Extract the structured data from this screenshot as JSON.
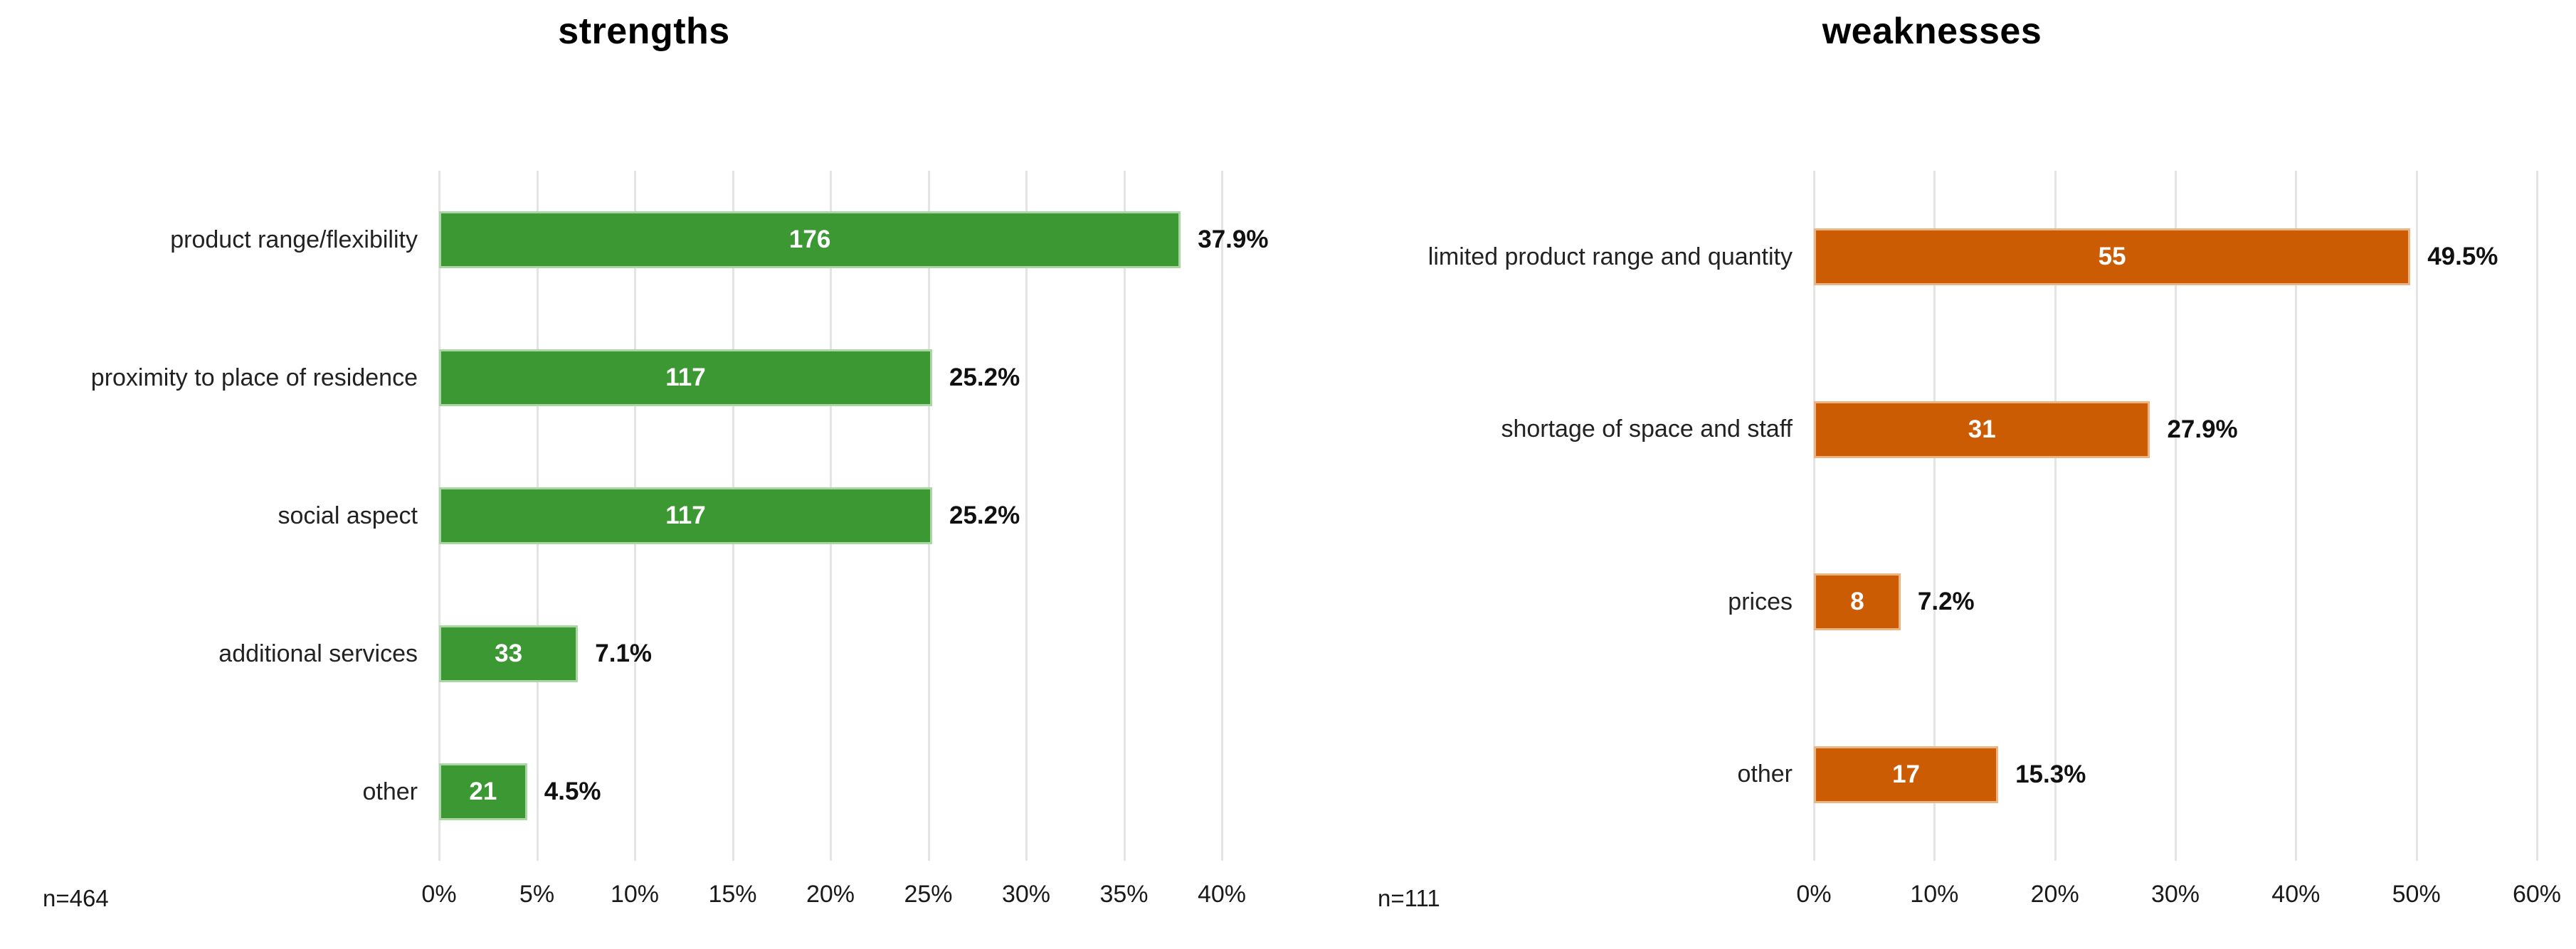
{
  "chart_data": [
    {
      "type": "bar",
      "orientation": "horizontal",
      "title": "strengths",
      "n_label": "n=464",
      "axis_max": 40,
      "tick_step": 5,
      "grid": true,
      "bar_color": "#3b9833",
      "bar_edge_color": "#a9d6a3",
      "categories": [
        "product range/flexibility",
        "proximity to place of residence",
        "social aspect",
        "additional services",
        "other"
      ],
      "counts": [
        "176",
        "117",
        "117",
        "33",
        "21"
      ],
      "percents": [
        37.9,
        25.2,
        25.2,
        7.1,
        4.5
      ],
      "percent_labels": [
        "37.9%",
        "25.2%",
        "25.2%",
        "7.1%",
        "4.5%"
      ],
      "tick_labels": [
        "0%",
        "5%",
        "10%",
        "15%",
        "20%",
        "25%",
        "30%",
        "35%",
        "40%"
      ]
    },
    {
      "type": "bar",
      "orientation": "horizontal",
      "title": "weaknesses",
      "n_label": "n=111",
      "axis_max": 60,
      "tick_step": 10,
      "grid": true,
      "bar_color": "#cc5c04",
      "bar_edge_color": "#ecb483",
      "categories": [
        "limited product range and quantity",
        "shortage of space and staff",
        "prices",
        "other"
      ],
      "counts": [
        "55",
        "31",
        "8",
        "17"
      ],
      "percents": [
        49.5,
        27.9,
        7.2,
        15.3
      ],
      "percent_labels": [
        "49.5%",
        "27.9%",
        "7.2%",
        "15.3%"
      ],
      "tick_labels": [
        "0%",
        "10%",
        "20%",
        "30%",
        "40%",
        "50%",
        "60%"
      ]
    }
  ]
}
